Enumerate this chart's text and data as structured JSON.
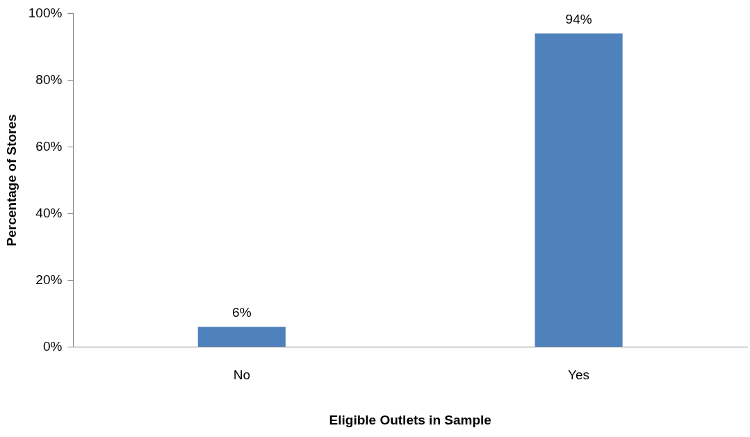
{
  "chart_data": {
    "type": "bar",
    "xlabel": "Eligible Outlets in Sample",
    "ylabel": "Percentage of Stores",
    "categories": [
      "No",
      "Yes"
    ],
    "values": [
      6,
      94
    ],
    "color": "#4f81bd",
    "value_labels": [
      "6%",
      "94%"
    ],
    "ylim": [
      0,
      100
    ],
    "yticks": [
      {
        "value": 0,
        "label": "0%"
      },
      {
        "value": 20,
        "label": "20%"
      },
      {
        "value": 40,
        "label": "40%"
      },
      {
        "value": 60,
        "label": "60%"
      },
      {
        "value": 80,
        "label": "80%"
      },
      {
        "value": 100,
        "label": "100%"
      }
    ],
    "grid": false,
    "legend": false
  }
}
